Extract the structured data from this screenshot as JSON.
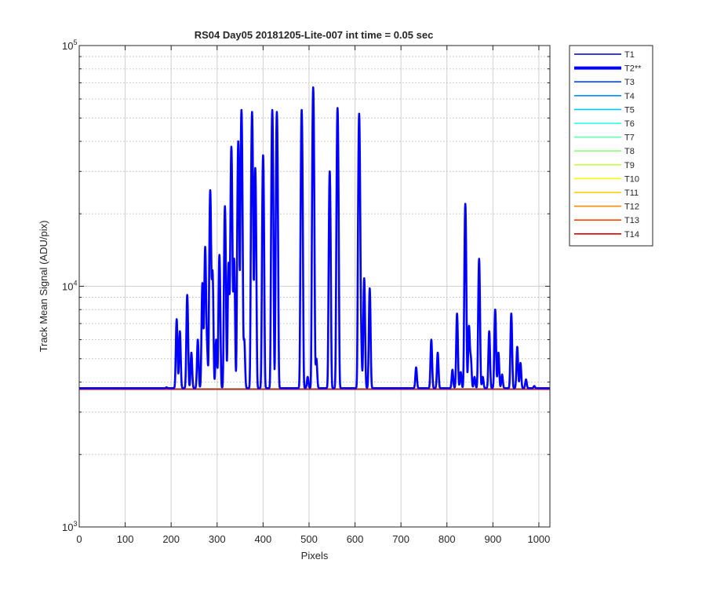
{
  "chart_data": {
    "type": "line",
    "title": "RS04 Day05 20181205-Lite-007 int time = 0.05 sec",
    "xlabel": "Pixels",
    "ylabel": "Track Mean Signal (ADU/pix)",
    "xlim": [
      0,
      1024
    ],
    "ylim": [
      1000,
      100000
    ],
    "yscale": "log",
    "x_ticks": [
      0,
      100,
      200,
      300,
      400,
      500,
      600,
      700,
      800,
      900,
      1000
    ],
    "y_ticks": [
      {
        "value": 1000,
        "base": "10",
        "exp": "3"
      },
      {
        "value": 10000,
        "base": "10",
        "exp": "4"
      },
      {
        "value": 100000,
        "base": "10",
        "exp": "5"
      }
    ],
    "grid": true,
    "minor_grid": true,
    "legend_position": "outside-top-right",
    "baseline_value": 3750,
    "series": [
      {
        "name": "T1",
        "color": "#000090",
        "baseline": 3730
      },
      {
        "name": "T2**",
        "color": "#0000ff",
        "highlight": true,
        "baseline": 3770,
        "peaks": [
          [
            190,
            3800
          ],
          [
            212,
            7300
          ],
          [
            219,
            6500
          ],
          [
            235,
            9200
          ],
          [
            244,
            5300
          ],
          [
            258,
            6000
          ],
          [
            268,
            10300
          ],
          [
            274,
            14500
          ],
          [
            278,
            5500
          ],
          [
            285,
            25000
          ],
          [
            290,
            11500
          ],
          [
            298,
            6000
          ],
          [
            305,
            13500
          ],
          [
            317,
            21500
          ],
          [
            325,
            12500
          ],
          [
            331,
            38000
          ],
          [
            337,
            13000
          ],
          [
            346,
            40000
          ],
          [
            353,
            54000
          ],
          [
            359,
            6000
          ],
          [
            376,
            53000
          ],
          [
            383,
            31000
          ],
          [
            400,
            35000
          ],
          [
            420,
            54000
          ],
          [
            430,
            53000
          ],
          [
            484,
            54000
          ],
          [
            497,
            4200
          ],
          [
            509,
            67000
          ],
          [
            516,
            5000
          ],
          [
            545,
            30000
          ],
          [
            562,
            55000
          ],
          [
            609,
            52000
          ],
          [
            613,
            6000
          ],
          [
            620,
            10800
          ],
          [
            632,
            9800
          ],
          [
            733,
            4600
          ],
          [
            766,
            6000
          ],
          [
            780,
            5300
          ],
          [
            812,
            4500
          ],
          [
            822,
            7700
          ],
          [
            830,
            4400
          ],
          [
            840,
            22000
          ],
          [
            848,
            6800
          ],
          [
            852,
            5000
          ],
          [
            860,
            4200
          ],
          [
            870,
            13000
          ],
          [
            878,
            4200
          ],
          [
            892,
            6500
          ],
          [
            905,
            8000
          ],
          [
            912,
            5300
          ],
          [
            920,
            4300
          ],
          [
            940,
            7700
          ],
          [
            953,
            5600
          ],
          [
            960,
            4800
          ],
          [
            972,
            4100
          ],
          [
            990,
            3850
          ]
        ]
      },
      {
        "name": "T3",
        "color": "#0045ff",
        "baseline": 3760
      },
      {
        "name": "T4",
        "color": "#0090ff",
        "baseline": 3755
      },
      {
        "name": "T5",
        "color": "#00c8ff",
        "baseline": 3750
      },
      {
        "name": "T6",
        "color": "#20ffe0",
        "baseline": 3748
      },
      {
        "name": "T7",
        "color": "#60ffb0",
        "baseline": 3745
      },
      {
        "name": "T8",
        "color": "#90ff80",
        "baseline": 3742
      },
      {
        "name": "T9",
        "color": "#c8ff40",
        "baseline": 3740
      },
      {
        "name": "T10",
        "color": "#ffff00",
        "baseline": 3738
      },
      {
        "name": "T11",
        "color": "#ffcc00",
        "baseline": 3735
      },
      {
        "name": "T12",
        "color": "#ff8c00",
        "baseline": 3732
      },
      {
        "name": "T13",
        "color": "#ff4500",
        "baseline": 3730
      },
      {
        "name": "T14",
        "color": "#dd0000",
        "baseline": 3728
      }
    ]
  }
}
